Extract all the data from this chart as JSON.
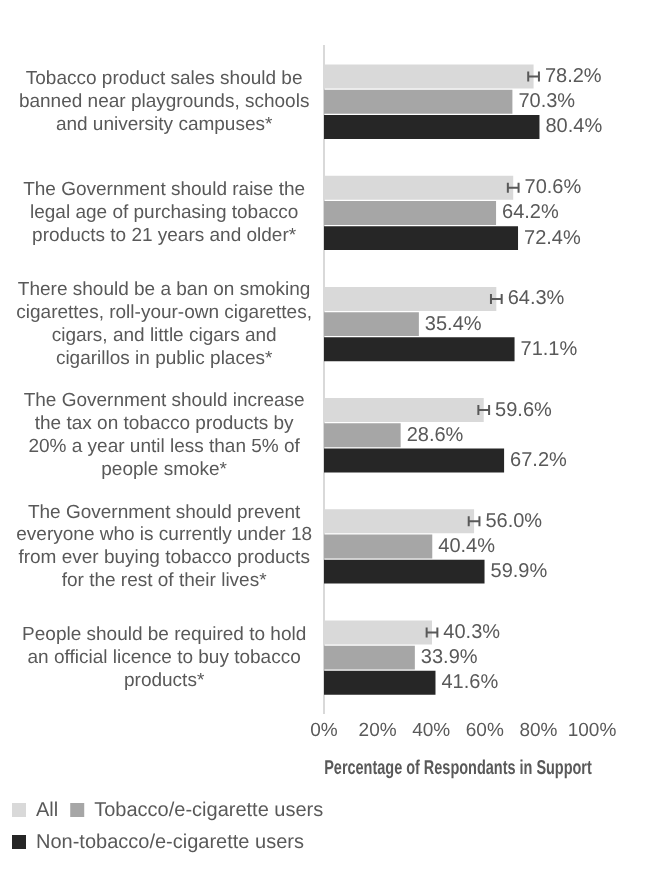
{
  "chart_data": {
    "type": "bar",
    "orientation": "horizontal",
    "xlabel": "Percentage of Respondants in Support",
    "categories": [
      "Tobacco product sales should be banned near playgrounds, schools and university campuses*",
      "The Government should raise the legal age of purchasing tobacco products to 21 years and older*",
      "There should be a ban on smoking cigarettes, roll-your-own cigarettes, cigars, and little cigars and cigarillos in public places*",
      "The Government should increase the tax on tobacco products by 20% a year until less than 5% of people smoke*",
      "The Government should prevent everyone who is currently under 18 from ever buying tobacco products for the rest of their lives*",
      "People should be required to hold an official licence to buy tobacco products*"
    ],
    "series": [
      {
        "name": "All",
        "color": "#d9d9d9",
        "values": [
          78.2,
          70.6,
          64.3,
          59.6,
          56.0,
          40.3
        ],
        "errors": [
          2,
          2,
          2,
          2,
          2,
          2
        ],
        "value_labels": [
          "78.2%",
          "70.6%",
          "64.3%",
          "59.6%",
          "56.0%",
          "40.3%"
        ]
      },
      {
        "name": "Tobacco/e-cigarette users",
        "color": "#a6a6a6",
        "values": [
          70.3,
          64.2,
          35.4,
          28.6,
          40.4,
          33.9
        ],
        "value_labels": [
          "70.3%",
          "64.2%",
          "35.4%",
          "28.6%",
          "40.4%",
          "33.9%"
        ]
      },
      {
        "name": "Non-tobacco/e-cigarette users",
        "color": "#262626",
        "values": [
          80.4,
          72.4,
          71.1,
          67.2,
          59.9,
          41.6
        ],
        "value_labels": [
          "80.4%",
          "72.4%",
          "71.1%",
          "67.2%",
          "59.9%",
          "41.6%"
        ]
      }
    ],
    "xlim": [
      0,
      100
    ],
    "xticks": [
      {
        "value": 0,
        "label": "0%"
      },
      {
        "value": 20,
        "label": "20%"
      },
      {
        "value": 40,
        "label": "40%"
      },
      {
        "value": 60,
        "label": "60%"
      },
      {
        "value": 80,
        "label": "80%"
      },
      {
        "value": 100,
        "label": "100%"
      }
    ],
    "grid": false,
    "legend": "bottom left"
  }
}
